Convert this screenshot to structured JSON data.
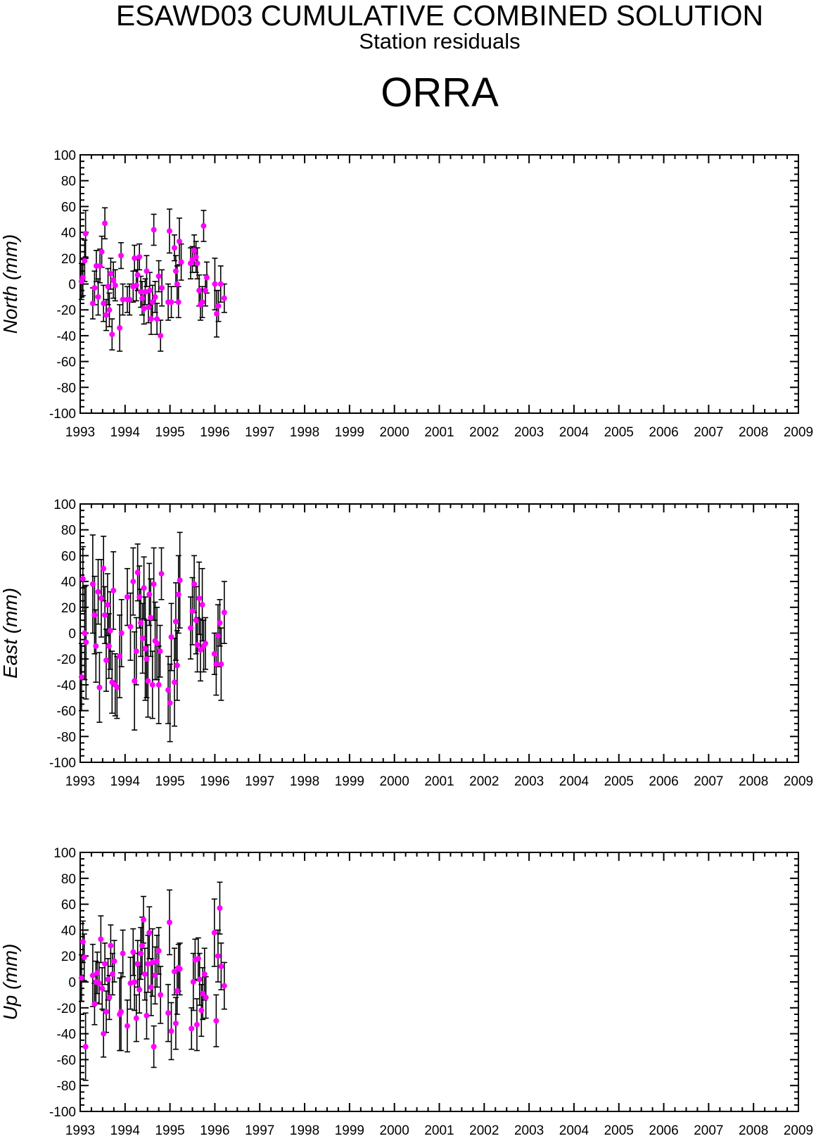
{
  "header": {
    "title": "ESAWD03 CUMULATIVE COMBINED SOLUTION",
    "subtitle": "Station residuals",
    "station": "ORRA"
  },
  "chart_data": [
    {
      "type": "scatter",
      "ylabel": "North (mm)",
      "xlim": [
        1993,
        2009
      ],
      "ylim": [
        -100,
        100
      ],
      "x_ticks": [
        "1993",
        "1994",
        "1995",
        "1996",
        "1997",
        "1998",
        "1999",
        "2000",
        "2001",
        "2002",
        "2003",
        "2004",
        "2005",
        "2006",
        "2007",
        "2008",
        "2009"
      ],
      "y_ticks": [
        "100",
        "80",
        "60",
        "40",
        "20",
        "0",
        "-20",
        "-40",
        "-60",
        "-80",
        "-100"
      ],
      "marker_color": "#ff00ff",
      "errorbar_color": "#000000",
      "points": [
        {
          "x": 1993.03,
          "y": 2,
          "err": 14
        },
        {
          "x": 1993.06,
          "y": 5,
          "err": 14
        },
        {
          "x": 1993.1,
          "y": 18,
          "err": 16
        },
        {
          "x": 1993.12,
          "y": 39,
          "err": 18
        },
        {
          "x": 1993.28,
          "y": -15,
          "err": 12
        },
        {
          "x": 1993.32,
          "y": -3,
          "err": 13
        },
        {
          "x": 1993.36,
          "y": 14,
          "err": 12
        },
        {
          "x": 1993.4,
          "y": -10,
          "err": 14
        },
        {
          "x": 1993.44,
          "y": 14,
          "err": 13
        },
        {
          "x": 1993.48,
          "y": 25,
          "err": 12
        },
        {
          "x": 1993.52,
          "y": -15,
          "err": 14
        },
        {
          "x": 1993.55,
          "y": 47,
          "err": 12
        },
        {
          "x": 1993.58,
          "y": -24,
          "err": 12
        },
        {
          "x": 1993.62,
          "y": -2,
          "err": 14
        },
        {
          "x": 1993.65,
          "y": -20,
          "err": 13
        },
        {
          "x": 1993.68,
          "y": 8,
          "err": 12
        },
        {
          "x": 1993.71,
          "y": -39,
          "err": 12
        },
        {
          "x": 1993.74,
          "y": 3,
          "err": 14
        },
        {
          "x": 1993.78,
          "y": -1,
          "err": 12
        },
        {
          "x": 1993.88,
          "y": -34,
          "err": 18
        },
        {
          "x": 1993.91,
          "y": 22,
          "err": 10
        },
        {
          "x": 1993.95,
          "y": -12,
          "err": 12
        },
        {
          "x": 1994.05,
          "y": -12,
          "err": 10
        },
        {
          "x": 1994.1,
          "y": -12,
          "err": 12
        },
        {
          "x": 1994.18,
          "y": -2,
          "err": 12
        },
        {
          "x": 1994.21,
          "y": 20,
          "err": 10
        },
        {
          "x": 1994.25,
          "y": -1,
          "err": 12
        },
        {
          "x": 1994.28,
          "y": 7,
          "err": 12
        },
        {
          "x": 1994.32,
          "y": 21,
          "err": 10
        },
        {
          "x": 1994.35,
          "y": -6,
          "err": 12
        },
        {
          "x": 1994.38,
          "y": -11,
          "err": 13
        },
        {
          "x": 1994.42,
          "y": -19,
          "err": 12
        },
        {
          "x": 1994.45,
          "y": -6,
          "err": 10
        },
        {
          "x": 1994.48,
          "y": 10,
          "err": 12
        },
        {
          "x": 1994.52,
          "y": -18,
          "err": 12
        },
        {
          "x": 1994.55,
          "y": -5,
          "err": 14
        },
        {
          "x": 1994.58,
          "y": -27,
          "err": 12
        },
        {
          "x": 1994.61,
          "y": -14,
          "err": 13
        },
        {
          "x": 1994.64,
          "y": 42,
          "err": 12
        },
        {
          "x": 1994.67,
          "y": -10,
          "err": 12
        },
        {
          "x": 1994.71,
          "y": -27,
          "err": 12
        },
        {
          "x": 1994.75,
          "y": 6,
          "err": 12
        },
        {
          "x": 1994.79,
          "y": -40,
          "err": 12
        },
        {
          "x": 1994.82,
          "y": -3,
          "err": 14
        },
        {
          "x": 1994.96,
          "y": -14,
          "err": 14
        },
        {
          "x": 1994.99,
          "y": 41,
          "err": 17
        },
        {
          "x": 1995.03,
          "y": -14,
          "err": 12
        },
        {
          "x": 1995.1,
          "y": 28,
          "err": 10
        },
        {
          "x": 1995.13,
          "y": 10,
          "err": 12
        },
        {
          "x": 1995.16,
          "y": 0,
          "err": 14
        },
        {
          "x": 1995.19,
          "y": -14,
          "err": 12
        },
        {
          "x": 1995.21,
          "y": 33,
          "err": 18
        },
        {
          "x": 1995.25,
          "y": 17,
          "err": 14
        },
        {
          "x": 1995.46,
          "y": 16,
          "err": 12
        },
        {
          "x": 1995.5,
          "y": 19,
          "err": 10
        },
        {
          "x": 1995.54,
          "y": 26,
          "err": 12
        },
        {
          "x": 1995.58,
          "y": 21,
          "err": 12
        },
        {
          "x": 1995.61,
          "y": 16,
          "err": 12
        },
        {
          "x": 1995.65,
          "y": -5,
          "err": 12
        },
        {
          "x": 1995.68,
          "y": -16,
          "err": 12
        },
        {
          "x": 1995.72,
          "y": -14,
          "err": 12
        },
        {
          "x": 1995.75,
          "y": 45,
          "err": 12
        },
        {
          "x": 1995.79,
          "y": -5,
          "err": 12
        },
        {
          "x": 1995.82,
          "y": 5,
          "err": 12
        },
        {
          "x": 1996.0,
          "y": 0,
          "err": 20
        },
        {
          "x": 1996.04,
          "y": -23,
          "err": 18
        },
        {
          "x": 1996.08,
          "y": -17,
          "err": 12
        },
        {
          "x": 1996.13,
          "y": 0,
          "err": 14
        },
        {
          "x": 1996.21,
          "y": -11,
          "err": 11
        }
      ]
    },
    {
      "type": "scatter",
      "ylabel": "East (mm)",
      "xlim": [
        1993,
        2009
      ],
      "ylim": [
        -100,
        100
      ],
      "x_ticks": [
        "1993",
        "1994",
        "1995",
        "1996",
        "1997",
        "1998",
        "1999",
        "2000",
        "2001",
        "2002",
        "2003",
        "2004",
        "2005",
        "2006",
        "2007",
        "2008",
        "2009"
      ],
      "y_ticks": [
        "100",
        "80",
        "60",
        "40",
        "20",
        "0",
        "-20",
        "-40",
        "-60",
        "-80",
        "-100"
      ],
      "marker_color": "#ff00ff",
      "errorbar_color": "#000000",
      "points": [
        {
          "x": 1993.03,
          "y": -34,
          "err": 26
        },
        {
          "x": 1993.06,
          "y": 42,
          "err": 25
        },
        {
          "x": 1993.1,
          "y": 0,
          "err": 36
        },
        {
          "x": 1993.13,
          "y": -7,
          "err": 44
        },
        {
          "x": 1993.28,
          "y": 38,
          "err": 38
        },
        {
          "x": 1993.32,
          "y": 14,
          "err": 30
        },
        {
          "x": 1993.35,
          "y": -10,
          "err": 28
        },
        {
          "x": 1993.4,
          "y": 32,
          "err": 25
        },
        {
          "x": 1993.43,
          "y": -42,
          "err": 27
        },
        {
          "x": 1993.47,
          "y": 27,
          "err": 30
        },
        {
          "x": 1993.52,
          "y": 50,
          "err": 25
        },
        {
          "x": 1993.55,
          "y": 14,
          "err": 22
        },
        {
          "x": 1993.58,
          "y": -21,
          "err": 24
        },
        {
          "x": 1993.61,
          "y": 22,
          "err": 24
        },
        {
          "x": 1993.64,
          "y": -10,
          "err": 25
        },
        {
          "x": 1993.67,
          "y": 2,
          "err": 30
        },
        {
          "x": 1993.71,
          "y": -38,
          "err": 24
        },
        {
          "x": 1993.74,
          "y": 33,
          "err": 30
        },
        {
          "x": 1993.78,
          "y": -40,
          "err": 24
        },
        {
          "x": 1993.82,
          "y": -42,
          "err": 24
        },
        {
          "x": 1993.88,
          "y": -18,
          "err": 32
        },
        {
          "x": 1993.92,
          "y": 0,
          "err": 26
        },
        {
          "x": 1994.05,
          "y": 28,
          "err": 22
        },
        {
          "x": 1994.12,
          "y": 5,
          "err": 26
        },
        {
          "x": 1994.18,
          "y": 40,
          "err": 26
        },
        {
          "x": 1994.21,
          "y": -37,
          "err": 38
        },
        {
          "x": 1994.25,
          "y": -14,
          "err": 26
        },
        {
          "x": 1994.28,
          "y": 47,
          "err": 22
        },
        {
          "x": 1994.32,
          "y": 28,
          "err": 24
        },
        {
          "x": 1994.35,
          "y": 8,
          "err": 26
        },
        {
          "x": 1994.39,
          "y": -4,
          "err": 27
        },
        {
          "x": 1994.42,
          "y": 35,
          "err": 24
        },
        {
          "x": 1994.45,
          "y": -12,
          "err": 40
        },
        {
          "x": 1994.48,
          "y": -20,
          "err": 30
        },
        {
          "x": 1994.51,
          "y": -37,
          "err": 28
        },
        {
          "x": 1994.54,
          "y": 30,
          "err": 24
        },
        {
          "x": 1994.57,
          "y": 12,
          "err": 30
        },
        {
          "x": 1994.61,
          "y": -40,
          "err": 26
        },
        {
          "x": 1994.64,
          "y": 38,
          "err": 28
        },
        {
          "x": 1994.67,
          "y": -6,
          "err": 30
        },
        {
          "x": 1994.71,
          "y": -8,
          "err": 28
        },
        {
          "x": 1994.75,
          "y": -40,
          "err": 30
        },
        {
          "x": 1994.78,
          "y": -14,
          "err": 20
        },
        {
          "x": 1994.81,
          "y": 46,
          "err": 20
        },
        {
          "x": 1994.96,
          "y": -44,
          "err": 26
        },
        {
          "x": 1995.0,
          "y": -54,
          "err": 30
        },
        {
          "x": 1995.03,
          "y": -3,
          "err": 26
        },
        {
          "x": 1995.1,
          "y": -38,
          "err": 34
        },
        {
          "x": 1995.13,
          "y": 9,
          "err": 30
        },
        {
          "x": 1995.16,
          "y": -25,
          "err": 27
        },
        {
          "x": 1995.19,
          "y": 30,
          "err": 30
        },
        {
          "x": 1995.22,
          "y": 41,
          "err": 37
        },
        {
          "x": 1995.46,
          "y": 4,
          "err": 24
        },
        {
          "x": 1995.5,
          "y": 17,
          "err": 26
        },
        {
          "x": 1995.54,
          "y": 38,
          "err": 22
        },
        {
          "x": 1995.58,
          "y": 10,
          "err": 26
        },
        {
          "x": 1995.61,
          "y": -9,
          "err": 21
        },
        {
          "x": 1995.65,
          "y": 27,
          "err": 28
        },
        {
          "x": 1995.68,
          "y": -13,
          "err": 24
        },
        {
          "x": 1995.72,
          "y": 22,
          "err": 28
        },
        {
          "x": 1995.75,
          "y": -10,
          "err": 20
        },
        {
          "x": 1995.79,
          "y": -8,
          "err": 20
        },
        {
          "x": 1995.99,
          "y": -16,
          "err": 16
        },
        {
          "x": 1996.03,
          "y": -24,
          "err": 24
        },
        {
          "x": 1996.07,
          "y": -2,
          "err": 24
        },
        {
          "x": 1996.11,
          "y": 8,
          "err": 18
        },
        {
          "x": 1996.14,
          "y": -24,
          "err": 28
        },
        {
          "x": 1996.21,
          "y": 16,
          "err": 24
        }
      ]
    },
    {
      "type": "scatter",
      "ylabel": "Up (mm)",
      "xlim": [
        1993,
        2009
      ],
      "ylim": [
        -100,
        100
      ],
      "x_ticks": [
        "1993",
        "1994",
        "1995",
        "1996",
        "1997",
        "1998",
        "1999",
        "2000",
        "2001",
        "2002",
        "2003",
        "2004",
        "2005",
        "2006",
        "2007",
        "2008",
        "2009"
      ],
      "y_ticks": [
        "100",
        "80",
        "60",
        "40",
        "20",
        "0",
        "-20",
        "-40",
        "-60",
        "-80",
        "-100"
      ],
      "marker_color": "#ff00ff",
      "errorbar_color": "#000000",
      "points": [
        {
          "x": 1993.03,
          "y": 3,
          "err": 18
        },
        {
          "x": 1993.06,
          "y": 31,
          "err": 16
        },
        {
          "x": 1993.09,
          "y": 19,
          "err": 18
        },
        {
          "x": 1993.12,
          "y": -50,
          "err": 26
        },
        {
          "x": 1993.28,
          "y": 5,
          "err": 24
        },
        {
          "x": 1993.32,
          "y": -17,
          "err": 16
        },
        {
          "x": 1993.35,
          "y": 0,
          "err": 16
        },
        {
          "x": 1993.38,
          "y": 7,
          "err": 16
        },
        {
          "x": 1993.42,
          "y": -1,
          "err": 16
        },
        {
          "x": 1993.46,
          "y": 33,
          "err": 18
        },
        {
          "x": 1993.49,
          "y": -5,
          "err": 16
        },
        {
          "x": 1993.52,
          "y": -40,
          "err": 18
        },
        {
          "x": 1993.55,
          "y": 14,
          "err": 16
        },
        {
          "x": 1993.58,
          "y": -23,
          "err": 16
        },
        {
          "x": 1993.62,
          "y": 2,
          "err": 16
        },
        {
          "x": 1993.65,
          "y": -12,
          "err": 17
        },
        {
          "x": 1993.68,
          "y": 28,
          "err": 16
        },
        {
          "x": 1993.72,
          "y": 6,
          "err": 16
        },
        {
          "x": 1993.76,
          "y": 16,
          "err": 16
        },
        {
          "x": 1993.88,
          "y": -25,
          "err": 28
        },
        {
          "x": 1993.91,
          "y": -23,
          "err": 30
        },
        {
          "x": 1993.95,
          "y": 22,
          "err": 18
        },
        {
          "x": 1994.05,
          "y": -34,
          "err": 20
        },
        {
          "x": 1994.12,
          "y": -1,
          "err": 20
        },
        {
          "x": 1994.18,
          "y": 23,
          "err": 18
        },
        {
          "x": 1994.21,
          "y": 0,
          "err": 22
        },
        {
          "x": 1994.25,
          "y": -28,
          "err": 18
        },
        {
          "x": 1994.28,
          "y": 14,
          "err": 18
        },
        {
          "x": 1994.32,
          "y": -6,
          "err": 18
        },
        {
          "x": 1994.35,
          "y": 22,
          "err": 20
        },
        {
          "x": 1994.38,
          "y": 28,
          "err": 22
        },
        {
          "x": 1994.41,
          "y": 48,
          "err": 18
        },
        {
          "x": 1994.44,
          "y": 6,
          "err": 20
        },
        {
          "x": 1994.48,
          "y": -26,
          "err": 18
        },
        {
          "x": 1994.51,
          "y": 14,
          "err": 22
        },
        {
          "x": 1994.54,
          "y": 38,
          "err": 20
        },
        {
          "x": 1994.58,
          "y": -4,
          "err": 22
        },
        {
          "x": 1994.61,
          "y": 15,
          "err": 26
        },
        {
          "x": 1994.64,
          "y": -50,
          "err": 16
        },
        {
          "x": 1994.67,
          "y": 5,
          "err": 22
        },
        {
          "x": 1994.71,
          "y": 16,
          "err": 20
        },
        {
          "x": 1994.75,
          "y": 24,
          "err": 18
        },
        {
          "x": 1994.79,
          "y": -10,
          "err": 22
        },
        {
          "x": 1994.96,
          "y": -24,
          "err": 22
        },
        {
          "x": 1994.99,
          "y": 46,
          "err": 25
        },
        {
          "x": 1995.03,
          "y": -38,
          "err": 22
        },
        {
          "x": 1995.1,
          "y": 8,
          "err": 18
        },
        {
          "x": 1995.13,
          "y": -32,
          "err": 20
        },
        {
          "x": 1995.16,
          "y": -7,
          "err": 18
        },
        {
          "x": 1995.19,
          "y": 11,
          "err": 18
        },
        {
          "x": 1995.22,
          "y": 10,
          "err": 20
        },
        {
          "x": 1995.48,
          "y": -36,
          "err": 16
        },
        {
          "x": 1995.52,
          "y": 0,
          "err": 22
        },
        {
          "x": 1995.56,
          "y": 17,
          "err": 16
        },
        {
          "x": 1995.6,
          "y": -33,
          "err": 20
        },
        {
          "x": 1995.63,
          "y": 18,
          "err": 16
        },
        {
          "x": 1995.66,
          "y": 2,
          "err": 20
        },
        {
          "x": 1995.7,
          "y": -22,
          "err": 20
        },
        {
          "x": 1995.73,
          "y": -9,
          "err": 20
        },
        {
          "x": 1995.77,
          "y": 6,
          "err": 20
        },
        {
          "x": 1995.8,
          "y": -12,
          "err": 16
        },
        {
          "x": 1995.99,
          "y": 38,
          "err": 26
        },
        {
          "x": 1996.03,
          "y": -30,
          "err": 20
        },
        {
          "x": 1996.07,
          "y": 20,
          "err": 20
        },
        {
          "x": 1996.11,
          "y": 57,
          "err": 20
        },
        {
          "x": 1996.14,
          "y": 12,
          "err": 18
        },
        {
          "x": 1996.21,
          "y": -3,
          "err": 18
        }
      ]
    }
  ]
}
